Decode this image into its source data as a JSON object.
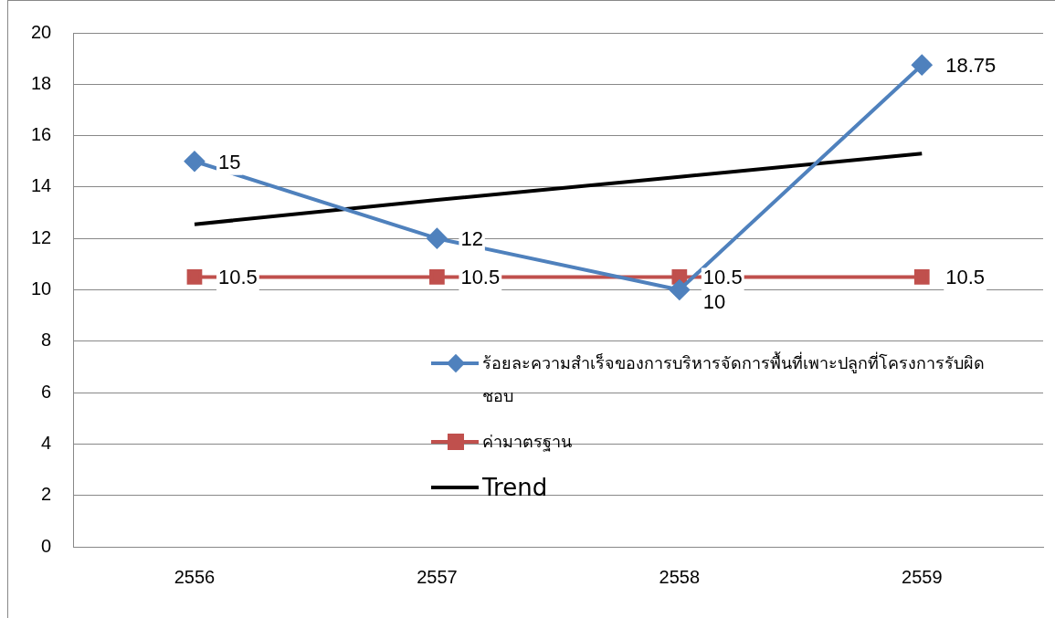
{
  "chart_data": {
    "type": "line",
    "categories": [
      "2556",
      "2557",
      "2558",
      "2559"
    ],
    "series": [
      {
        "name": "ร้อยละความสำเร็จของการบริหารจัดการพื้นที่เพาะปลูกที่โครงการรับผิดชอบ",
        "color": "#4f81bd",
        "marker": "diamond",
        "values": [
          15,
          12,
          10,
          18.75
        ],
        "value_labels": [
          "15",
          "12",
          "10",
          "18.75"
        ]
      },
      {
        "name": "ค่ามาตรฐาน",
        "color": "#c0504d",
        "marker": "square",
        "values": [
          10.5,
          10.5,
          10.5,
          10.5
        ],
        "value_labels": [
          "10.5",
          "10.5",
          "10.5",
          "10.5"
        ]
      },
      {
        "name": "Trend",
        "color": "#000000",
        "marker": "none",
        "values": [
          12.55,
          13.5,
          14.4,
          15.3
        ]
      }
    ],
    "ylim": [
      0,
      20
    ],
    "yticks": [
      0,
      2,
      4,
      6,
      8,
      10,
      12,
      14,
      16,
      18,
      20
    ],
    "grid": "y",
    "legend": "bottom right"
  }
}
